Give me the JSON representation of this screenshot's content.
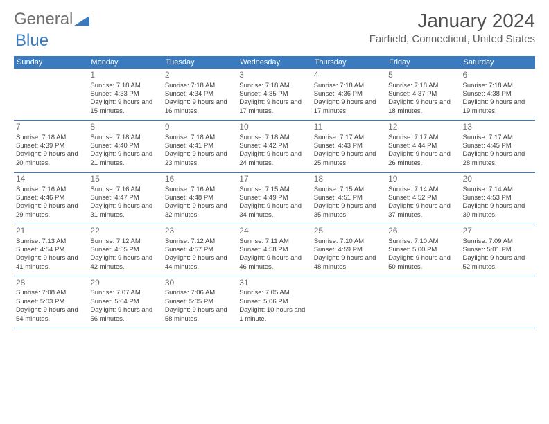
{
  "logo": {
    "part1": "General",
    "part2": "Blue"
  },
  "title": "January 2024",
  "location": "Fairfield, Connecticut, United States",
  "colors": {
    "header_bg": "#3a7bbf",
    "header_text": "#ffffff",
    "border": "#3a7bbf",
    "text": "#404040",
    "daynum": "#707070"
  },
  "day_headers": [
    "Sunday",
    "Monday",
    "Tuesday",
    "Wednesday",
    "Thursday",
    "Friday",
    "Saturday"
  ],
  "weeks": [
    [
      {
        "blank": true
      },
      {
        "num": "1",
        "sunrise": "7:18 AM",
        "sunset": "4:33 PM",
        "daylight": "9 hours and 15 minutes."
      },
      {
        "num": "2",
        "sunrise": "7:18 AM",
        "sunset": "4:34 PM",
        "daylight": "9 hours and 16 minutes."
      },
      {
        "num": "3",
        "sunrise": "7:18 AM",
        "sunset": "4:35 PM",
        "daylight": "9 hours and 17 minutes."
      },
      {
        "num": "4",
        "sunrise": "7:18 AM",
        "sunset": "4:36 PM",
        "daylight": "9 hours and 17 minutes."
      },
      {
        "num": "5",
        "sunrise": "7:18 AM",
        "sunset": "4:37 PM",
        "daylight": "9 hours and 18 minutes."
      },
      {
        "num": "6",
        "sunrise": "7:18 AM",
        "sunset": "4:38 PM",
        "daylight": "9 hours and 19 minutes."
      }
    ],
    [
      {
        "num": "7",
        "sunrise": "7:18 AM",
        "sunset": "4:39 PM",
        "daylight": "9 hours and 20 minutes."
      },
      {
        "num": "8",
        "sunrise": "7:18 AM",
        "sunset": "4:40 PM",
        "daylight": "9 hours and 21 minutes."
      },
      {
        "num": "9",
        "sunrise": "7:18 AM",
        "sunset": "4:41 PM",
        "daylight": "9 hours and 23 minutes."
      },
      {
        "num": "10",
        "sunrise": "7:18 AM",
        "sunset": "4:42 PM",
        "daylight": "9 hours and 24 minutes."
      },
      {
        "num": "11",
        "sunrise": "7:17 AM",
        "sunset": "4:43 PM",
        "daylight": "9 hours and 25 minutes."
      },
      {
        "num": "12",
        "sunrise": "7:17 AM",
        "sunset": "4:44 PM",
        "daylight": "9 hours and 26 minutes."
      },
      {
        "num": "13",
        "sunrise": "7:17 AM",
        "sunset": "4:45 PM",
        "daylight": "9 hours and 28 minutes."
      }
    ],
    [
      {
        "num": "14",
        "sunrise": "7:16 AM",
        "sunset": "4:46 PM",
        "daylight": "9 hours and 29 minutes."
      },
      {
        "num": "15",
        "sunrise": "7:16 AM",
        "sunset": "4:47 PM",
        "daylight": "9 hours and 31 minutes."
      },
      {
        "num": "16",
        "sunrise": "7:16 AM",
        "sunset": "4:48 PM",
        "daylight": "9 hours and 32 minutes."
      },
      {
        "num": "17",
        "sunrise": "7:15 AM",
        "sunset": "4:49 PM",
        "daylight": "9 hours and 34 minutes."
      },
      {
        "num": "18",
        "sunrise": "7:15 AM",
        "sunset": "4:51 PM",
        "daylight": "9 hours and 35 minutes."
      },
      {
        "num": "19",
        "sunrise": "7:14 AM",
        "sunset": "4:52 PM",
        "daylight": "9 hours and 37 minutes."
      },
      {
        "num": "20",
        "sunrise": "7:14 AM",
        "sunset": "4:53 PM",
        "daylight": "9 hours and 39 minutes."
      }
    ],
    [
      {
        "num": "21",
        "sunrise": "7:13 AM",
        "sunset": "4:54 PM",
        "daylight": "9 hours and 41 minutes."
      },
      {
        "num": "22",
        "sunrise": "7:12 AM",
        "sunset": "4:55 PM",
        "daylight": "9 hours and 42 minutes."
      },
      {
        "num": "23",
        "sunrise": "7:12 AM",
        "sunset": "4:57 PM",
        "daylight": "9 hours and 44 minutes."
      },
      {
        "num": "24",
        "sunrise": "7:11 AM",
        "sunset": "4:58 PM",
        "daylight": "9 hours and 46 minutes."
      },
      {
        "num": "25",
        "sunrise": "7:10 AM",
        "sunset": "4:59 PM",
        "daylight": "9 hours and 48 minutes."
      },
      {
        "num": "26",
        "sunrise": "7:10 AM",
        "sunset": "5:00 PM",
        "daylight": "9 hours and 50 minutes."
      },
      {
        "num": "27",
        "sunrise": "7:09 AM",
        "sunset": "5:01 PM",
        "daylight": "9 hours and 52 minutes."
      }
    ],
    [
      {
        "num": "28",
        "sunrise": "7:08 AM",
        "sunset": "5:03 PM",
        "daylight": "9 hours and 54 minutes."
      },
      {
        "num": "29",
        "sunrise": "7:07 AM",
        "sunset": "5:04 PM",
        "daylight": "9 hours and 56 minutes."
      },
      {
        "num": "30",
        "sunrise": "7:06 AM",
        "sunset": "5:05 PM",
        "daylight": "9 hours and 58 minutes."
      },
      {
        "num": "31",
        "sunrise": "7:05 AM",
        "sunset": "5:06 PM",
        "daylight": "10 hours and 1 minute."
      },
      {
        "blank": true
      },
      {
        "blank": true
      },
      {
        "blank": true
      }
    ]
  ],
  "labels": {
    "sunrise": "Sunrise:",
    "sunset": "Sunset:",
    "daylight": "Daylight:"
  }
}
